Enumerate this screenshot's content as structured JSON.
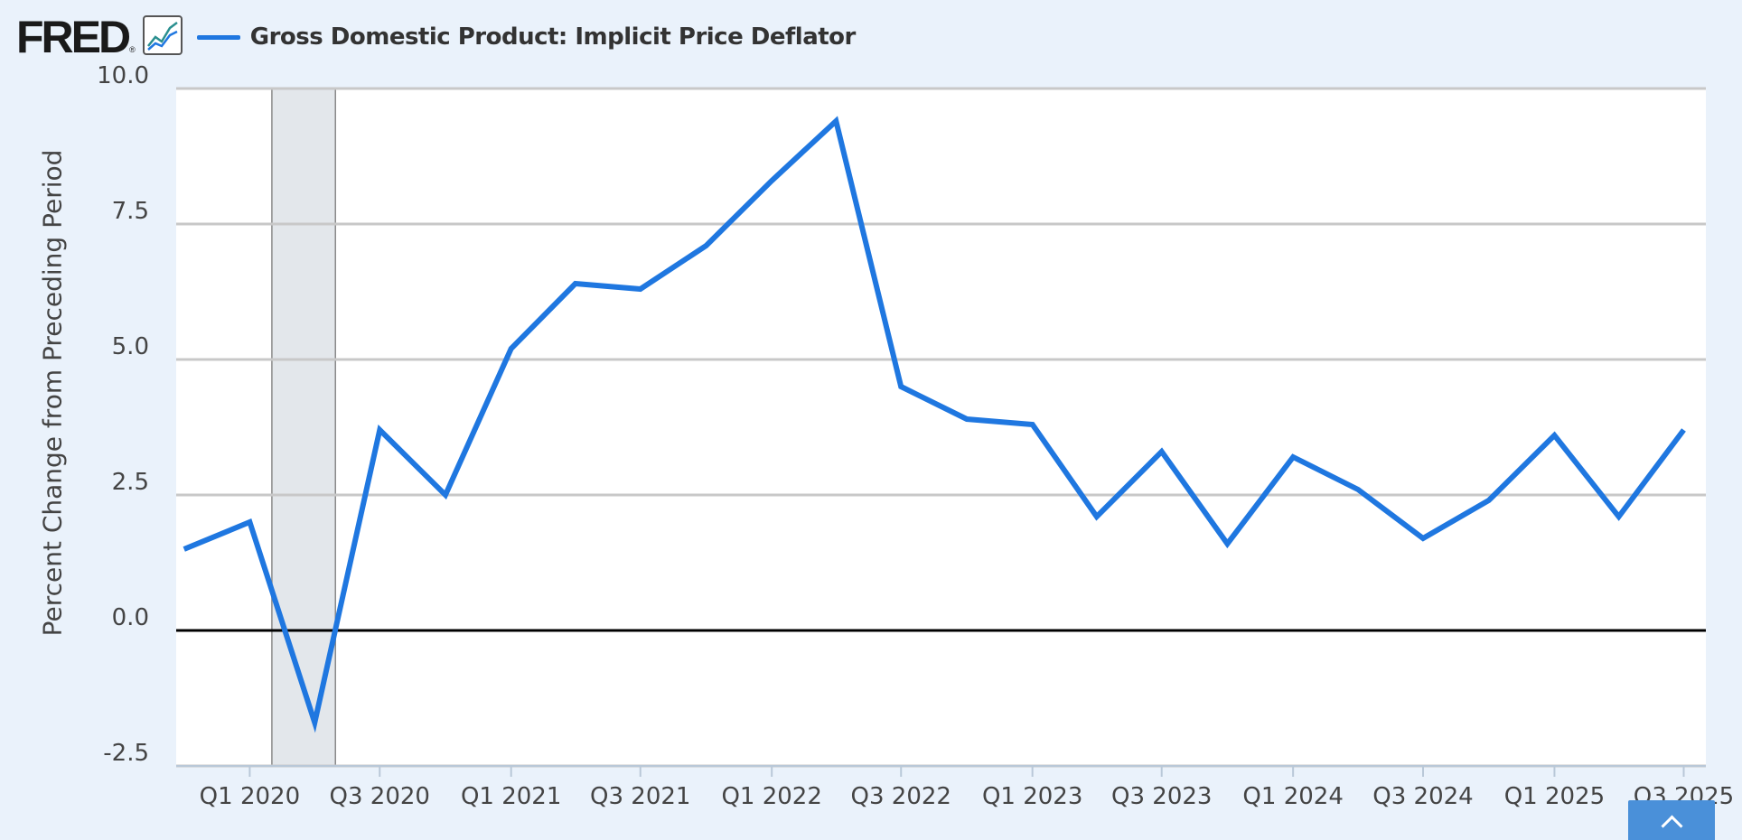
{
  "header": {
    "logo_text": "FRED",
    "logo_reg": "®",
    "logo_icon": "line-chart-icon",
    "legend_label": "Gross Domestic Product: Implicit Price Deflator"
  },
  "colors": {
    "series": "#1f77e0",
    "plot_background": "#ffffff",
    "page_background": "#eaf2fb",
    "gridline": "#c8c8c8",
    "zero_line": "#000000",
    "recession_band": "#e3e7eb"
  },
  "scroll_button": {
    "icon": "chevron-up-icon"
  },
  "chart_data": {
    "type": "line",
    "title": "",
    "xlabel": "",
    "ylabel": "Percent Change from Preceding Period",
    "ylim": [
      -2.5,
      10.0
    ],
    "yticks": [
      "-2.5",
      "0.0",
      "2.5",
      "5.0",
      "7.5",
      "10.0"
    ],
    "yticks_values": [
      -2.5,
      0.0,
      2.5,
      5.0,
      7.5,
      10.0
    ],
    "xticks": [
      "Q1 2020",
      "Q3 2020",
      "Q1 2021",
      "Q3 2021",
      "Q1 2022",
      "Q3 2022",
      "Q1 2023",
      "Q3 2023",
      "Q1 2024",
      "Q3 2024",
      "Q1 2025",
      "Q3 2025"
    ],
    "grid": true,
    "legend_position": "top-left",
    "recession_shading": {
      "from": "2020-02-01",
      "to": "2020-04-30"
    },
    "series": [
      {
        "name": "Gross Domestic Product: Implicit Price Deflator",
        "x": [
          "2019-10-01",
          "2020-01-01",
          "2020-04-01",
          "2020-07-01",
          "2020-10-01",
          "2021-01-01",
          "2021-04-01",
          "2021-07-01",
          "2021-10-01",
          "2022-01-01",
          "2022-04-01",
          "2022-07-01",
          "2022-10-01",
          "2023-01-01",
          "2023-04-01",
          "2023-07-01",
          "2023-10-01",
          "2024-01-01",
          "2024-04-01",
          "2024-07-01",
          "2024-10-01",
          "2025-01-01",
          "2025-04-01",
          "2025-07-01"
        ],
        "values": [
          1.5,
          2.0,
          -1.7,
          3.7,
          2.5,
          5.2,
          6.4,
          6.3,
          7.1,
          8.3,
          9.4,
          4.5,
          3.9,
          3.8,
          2.1,
          3.3,
          1.6,
          3.2,
          2.6,
          1.7,
          2.4,
          3.6,
          2.1,
          3.7
        ]
      }
    ]
  }
}
